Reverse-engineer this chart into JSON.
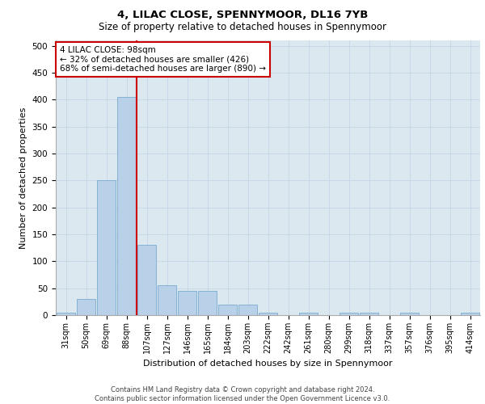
{
  "title": "4, LILAC CLOSE, SPENNYMOOR, DL16 7YB",
  "subtitle": "Size of property relative to detached houses in Spennymoor",
  "xlabel": "Distribution of detached houses by size in Spennymoor",
  "ylabel": "Number of detached properties",
  "annotation_line1": "4 LILAC CLOSE: 98sqm",
  "annotation_line2": "← 32% of detached houses are smaller (426)",
  "annotation_line3": "68% of semi-detached houses are larger (890) →",
  "categories": [
    "31sqm",
    "50sqm",
    "69sqm",
    "88sqm",
    "107sqm",
    "127sqm",
    "146sqm",
    "165sqm",
    "184sqm",
    "203sqm",
    "222sqm",
    "242sqm",
    "261sqm",
    "280sqm",
    "299sqm",
    "318sqm",
    "337sqm",
    "357sqm",
    "376sqm",
    "395sqm",
    "414sqm"
  ],
  "values": [
    5,
    30,
    250,
    405,
    130,
    55,
    45,
    45,
    20,
    20,
    5,
    0,
    5,
    0,
    5,
    5,
    0,
    5,
    0,
    0,
    5
  ],
  "bar_color": "#b8d0e8",
  "bar_edge_color": "#7aaad0",
  "vline_color": "#cc0000",
  "vline_x_index": 3.5,
  "annotation_box_facecolor": "#ffffff",
  "annotation_box_edgecolor": "#cc0000",
  "grid_color": "#c8d8e8",
  "bg_color": "#dce8f0",
  "ylim": [
    0,
    510
  ],
  "yticks": [
    0,
    50,
    100,
    150,
    200,
    250,
    300,
    350,
    400,
    450,
    500
  ],
  "footer_line1": "Contains HM Land Registry data © Crown copyright and database right 2024.",
  "footer_line2": "Contains public sector information licensed under the Open Government Licence v3.0."
}
